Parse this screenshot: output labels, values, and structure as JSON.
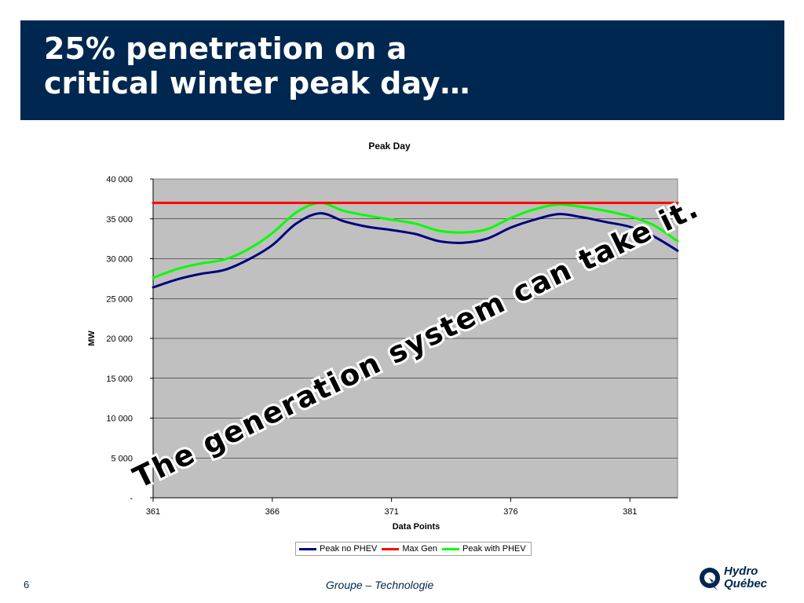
{
  "slide": {
    "title_line1": "25% penetration on a",
    "title_line2": "critical winter peak day…",
    "overlay_text": "The generation system can take it.",
    "page_number": "6",
    "footer": "Groupe – Technologie",
    "logo_line1": "Hydro",
    "logo_line2": "Québec",
    "colors": {
      "title_bg": "#00274f",
      "brand": "#00274f"
    }
  },
  "chart_data": {
    "type": "line",
    "title": "Peak Day",
    "xlabel": "Data Points",
    "ylabel": "MW",
    "xlim": [
      361,
      383
    ],
    "ylim": [
      0,
      40000
    ],
    "x_ticks": [
      "361",
      "366",
      "371",
      "376",
      "381"
    ],
    "y_ticks": [
      "-",
      "5 000",
      "10 000",
      "15 000",
      "20 000",
      "25 000",
      "30 000",
      "35 000",
      "40 000"
    ],
    "grid": true,
    "plot_background": "#c0c0c0",
    "legend_position": "bottom",
    "x": [
      361,
      362,
      363,
      364,
      365,
      366,
      367,
      368,
      369,
      370,
      371,
      372,
      373,
      374,
      375,
      376,
      377,
      378,
      379,
      380,
      381,
      382,
      383
    ],
    "series": [
      {
        "name": "Peak no PHEV",
        "color": "#000080",
        "values": [
          26400,
          27400,
          28100,
          28600,
          29900,
          31700,
          34400,
          35700,
          34700,
          34000,
          33600,
          33100,
          32200,
          32000,
          32500,
          33900,
          34900,
          35600,
          35200,
          34600,
          34000,
          32800,
          31000
        ]
      },
      {
        "name": "Max Gen",
        "color": "#ff0000",
        "values": [
          37000,
          37000,
          37000,
          37000,
          37000,
          37000,
          37000,
          37000,
          37000,
          37000,
          37000,
          37000,
          37000,
          37000,
          37000,
          37000,
          37000,
          37000,
          37000,
          37000,
          37000,
          37000,
          37000
        ]
      },
      {
        "name": "Peak with PHEV",
        "color": "#00ff00",
        "values": [
          27600,
          28700,
          29400,
          29900,
          31200,
          33200,
          35800,
          37000,
          36000,
          35400,
          34900,
          34400,
          33500,
          33300,
          33700,
          35100,
          36200,
          36800,
          36500,
          36000,
          35300,
          34200,
          32200
        ]
      }
    ]
  }
}
